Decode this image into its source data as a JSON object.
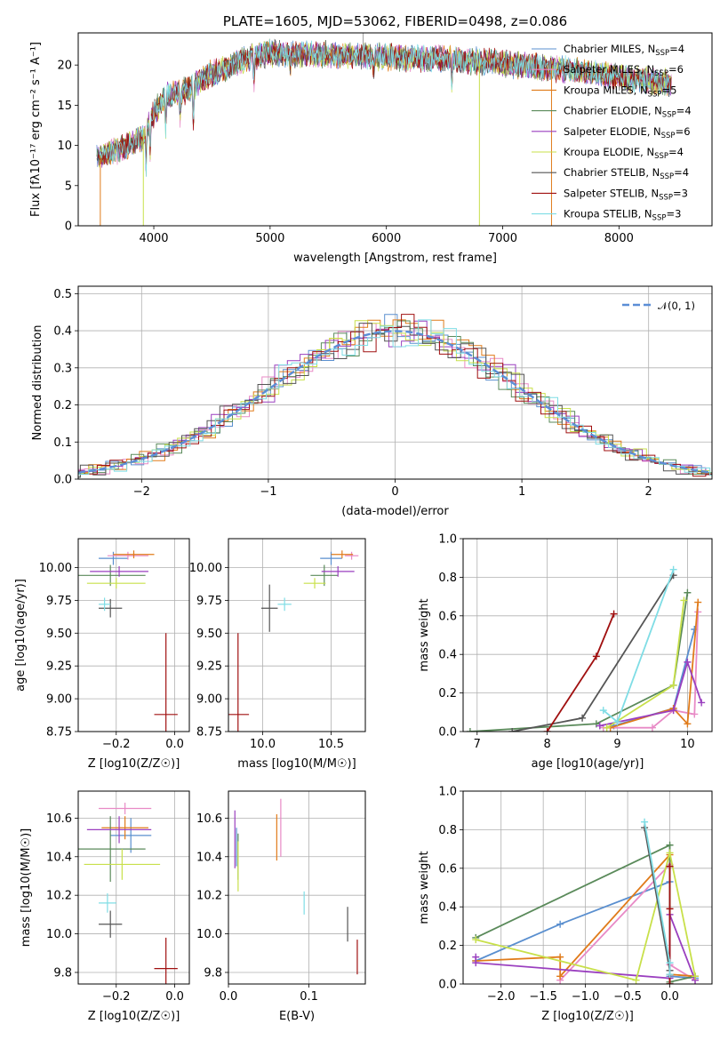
{
  "colors": {
    "chabrier_miles": "#5a8fcf",
    "salpeter_miles": "#e88ac6",
    "kroupa_miles": "#e07b1a",
    "chabrier_elodie": "#5a8a5a",
    "salpeter_elodie": "#9a3fbf",
    "kroupa_elodie": "#c8e04a",
    "chabrier_stelib": "#555555",
    "salpeter_stelib": "#a01010",
    "kroupa_stelib": "#7fdde5"
  },
  "chart_data": [
    {
      "id": "spectrum",
      "type": "line",
      "title": "PLATE=1605, MJD=53062, FIBERID=0498, z=0.086",
      "xlabel": "wavelength [Angstrom, rest frame]",
      "ylabel": "Flux [fλ10⁻¹⁷ erg cm⁻² s⁻¹ A⁻¹]",
      "xlim": [
        3350,
        8800
      ],
      "ylim": [
        0,
        24
      ],
      "xticks": [
        "4000",
        "5000",
        "6000",
        "7000",
        "8000"
      ],
      "yticks": [
        "0",
        "5",
        "10",
        "15",
        "20"
      ],
      "grid": false,
      "legend_position": "top-right",
      "continuum": [
        [
          3500,
          8.5
        ],
        [
          3700,
          9.5
        ],
        [
          3900,
          11
        ],
        [
          4000,
          14
        ],
        [
          4100,
          16
        ],
        [
          4300,
          17
        ],
        [
          4500,
          19
        ],
        [
          4800,
          20.8
        ],
        [
          5000,
          21.5
        ],
        [
          5500,
          21.3
        ],
        [
          6000,
          21
        ],
        [
          6500,
          20.8
        ],
        [
          7000,
          20.2
        ],
        [
          7500,
          19.5
        ],
        [
          8000,
          18.5
        ],
        [
          8500,
          17.6
        ]
      ],
      "series": [
        {
          "name": "Chabrier MILES, N_SSP=4",
          "color_key": "chabrier_miles"
        },
        {
          "name": "Salpeter MILES, N_SSP=6",
          "color_key": "salpeter_miles"
        },
        {
          "name": "Kroupa MILES, N_SSP=5",
          "color_key": "kroupa_miles"
        },
        {
          "name": "Chabrier ELODIE, N_SSP=4",
          "color_key": "chabrier_elodie"
        },
        {
          "name": "Salpeter ELODIE, N_SSP=6",
          "color_key": "salpeter_elodie"
        },
        {
          "name": "Kroupa ELODIE, N_SSP=4",
          "color_key": "kroupa_elodie"
        },
        {
          "name": "Chabrier STELIB, N_SSP=4",
          "color_key": "chabrier_stelib"
        },
        {
          "name": "Salpeter STELIB, N_SSP=3",
          "color_key": "salpeter_stelib"
        },
        {
          "name": "Kroupa STELIB, N_SSP=3",
          "color_key": "kroupa_stelib"
        }
      ],
      "legend_labels": [
        {
          "base": "Chabrier MILES, N",
          "sub": "SSP",
          "tail": "=4"
        },
        {
          "base": "Salpeter MILES, N",
          "sub": "SSP",
          "tail": "=6"
        },
        {
          "base": "Kroupa MILES, N",
          "sub": "SSP",
          "tail": "=5"
        },
        {
          "base": "Chabrier ELODIE, N",
          "sub": "SSP",
          "tail": "=4"
        },
        {
          "base": "Salpeter ELODIE, N",
          "sub": "SSP",
          "tail": "=6"
        },
        {
          "base": "Kroupa ELODIE, N",
          "sub": "SSP",
          "tail": "=4"
        },
        {
          "base": "Chabrier STELIB, N",
          "sub": "SSP",
          "tail": "=4"
        },
        {
          "base": "Salpeter STELIB, N",
          "sub": "SSP",
          "tail": "=3"
        },
        {
          "base": "Kroupa STELIB, N",
          "sub": "SSP",
          "tail": "=3"
        }
      ]
    },
    {
      "id": "residuals",
      "type": "line",
      "xlabel": "(data-model)/error",
      "ylabel": "Normed distribution",
      "xlim": [
        -2.5,
        2.5
      ],
      "ylim": [
        0,
        0.52
      ],
      "xticks": [
        "−2",
        "−1",
        "0",
        "1",
        "2"
      ],
      "yticks": [
        "0.0",
        "0.1",
        "0.2",
        "0.3",
        "0.4",
        "0.5"
      ],
      "grid": true,
      "legend_position": "top-right",
      "gaussian_label": "𝒩(0, 1)",
      "bin_width": 0.1
    },
    {
      "id": "age_vs_Z",
      "type": "scatter",
      "xlabel": "Z [log10(Z/Z☉)]",
      "ylabel": "age  [log10(age/yr)]",
      "xlim": [
        -0.33,
        0.05
      ],
      "ylim": [
        8.75,
        10.22
      ],
      "xticks": [
        "−0.2",
        "0.0"
      ],
      "yticks": [
        "8.75",
        "9.00",
        "9.25",
        "9.50",
        "9.75",
        "10.00"
      ],
      "grid": true,
      "points": [
        {
          "color_key": "chabrier_miles",
          "x": -0.21,
          "y": 10.07,
          "xerr": 0.05,
          "yerr": 0.05
        },
        {
          "color_key": "salpeter_miles",
          "x": -0.16,
          "y": 10.09,
          "xerr": 0.07,
          "yerr": 0.03
        },
        {
          "color_key": "kroupa_miles",
          "x": -0.14,
          "y": 10.1,
          "xerr": 0.07,
          "yerr": 0.03
        },
        {
          "color_key": "chabrier_elodie",
          "x": -0.22,
          "y": 9.94,
          "xerr": 0.12,
          "yerr": 0.08
        },
        {
          "color_key": "salpeter_elodie",
          "x": -0.19,
          "y": 9.97,
          "xerr": 0.1,
          "yerr": 0.04
        },
        {
          "color_key": "kroupa_elodie",
          "x": -0.2,
          "y": 9.88,
          "xerr": 0.1,
          "yerr": 0.04
        },
        {
          "color_key": "chabrier_stelib",
          "x": -0.22,
          "y": 9.69,
          "xerr": 0.04,
          "yerr": 0.07
        },
        {
          "color_key": "salpeter_stelib",
          "x": -0.03,
          "y": 8.88,
          "xerr": 0.04,
          "yerr": 0.62
        },
        {
          "color_key": "kroupa_stelib",
          "x": -0.24,
          "y": 9.72,
          "xerr": 0.02,
          "yerr": 0.05
        }
      ]
    },
    {
      "id": "age_vs_mass",
      "type": "scatter",
      "xlabel": "mass [log10(M/M☉)]",
      "ylabel": "",
      "xlim": [
        9.75,
        10.75
      ],
      "ylim": [
        8.75,
        10.22
      ],
      "xticks": [
        "10.0",
        "10.5"
      ],
      "yticks": [
        "8.75",
        "9.00",
        "9.25",
        "9.50",
        "9.75",
        "10.00"
      ],
      "grid": true,
      "points": [
        {
          "color_key": "chabrier_miles",
          "x": 10.5,
          "y": 10.07,
          "xerr": 0.08,
          "yerr": 0.05
        },
        {
          "color_key": "salpeter_miles",
          "x": 10.65,
          "y": 10.09,
          "xerr": 0.05,
          "yerr": 0.03
        },
        {
          "color_key": "kroupa_miles",
          "x": 10.58,
          "y": 10.1,
          "xerr": 0.08,
          "yerr": 0.03
        },
        {
          "color_key": "chabrier_elodie",
          "x": 10.45,
          "y": 9.94,
          "xerr": 0.1,
          "yerr": 0.08
        },
        {
          "color_key": "salpeter_elodie",
          "x": 10.55,
          "y": 9.97,
          "xerr": 0.12,
          "yerr": 0.04
        },
        {
          "color_key": "kroupa_elodie",
          "x": 10.38,
          "y": 9.88,
          "xerr": 0.08,
          "yerr": 0.04
        },
        {
          "color_key": "chabrier_stelib",
          "x": 10.05,
          "y": 9.69,
          "xerr": 0.06,
          "yerr": 0.18
        },
        {
          "color_key": "salpeter_stelib",
          "x": 9.82,
          "y": 8.88,
          "xerr": 0.08,
          "yerr": 0.62
        },
        {
          "color_key": "kroupa_stelib",
          "x": 10.16,
          "y": 9.72,
          "xerr": 0.05,
          "yerr": 0.05
        }
      ]
    },
    {
      "id": "weight_vs_age",
      "type": "line",
      "xlabel": "age  [log10(age/yr)]",
      "ylabel": "mass weight",
      "xlim": [
        6.8,
        10.35
      ],
      "ylim": [
        0,
        1.0
      ],
      "xticks": [
        "7",
        "8",
        "9",
        "10"
      ],
      "yticks": [
        "0.0",
        "0.2",
        "0.4",
        "0.6",
        "0.8",
        "1.0"
      ],
      "grid": true,
      "series": [
        {
          "color_key": "chabrier_miles",
          "points": [
            [
              8.95,
              0.03
            ],
            [
              9.8,
              0.12
            ],
            [
              10.1,
              0.53
            ]
          ]
        },
        {
          "color_key": "salpeter_miles",
          "points": [
            [
              8.8,
              0.02
            ],
            [
              9.5,
              0.02
            ],
            [
              9.8,
              0.11
            ],
            [
              10.1,
              0.09
            ],
            [
              10.15,
              0.62
            ]
          ]
        },
        {
          "color_key": "kroupa_miles",
          "points": [
            [
              8.9,
              0.02
            ],
            [
              9.8,
              0.12
            ],
            [
              10.0,
              0.04
            ],
            [
              10.15,
              0.67
            ]
          ]
        },
        {
          "color_key": "chabrier_elodie",
          "points": [
            [
              6.9,
              0.0
            ],
            [
              8.7,
              0.04
            ],
            [
              9.8,
              0.24
            ],
            [
              10.0,
              0.72
            ]
          ]
        },
        {
          "color_key": "salpeter_elodie",
          "points": [
            [
              8.75,
              0.03
            ],
            [
              9.8,
              0.11
            ],
            [
              10.0,
              0.36
            ],
            [
              10.2,
              0.15
            ]
          ]
        },
        {
          "color_key": "kroupa_elodie",
          "points": [
            [
              8.85,
              0.02
            ],
            [
              9.8,
              0.24
            ],
            [
              9.95,
              0.68
            ]
          ]
        },
        {
          "color_key": "chabrier_stelib",
          "points": [
            [
              7.5,
              0.0
            ],
            [
              8.5,
              0.07
            ],
            [
              9.8,
              0.81
            ]
          ]
        },
        {
          "color_key": "salpeter_stelib",
          "points": [
            [
              8.0,
              0.0
            ],
            [
              8.7,
              0.39
            ],
            [
              8.95,
              0.61
            ]
          ]
        },
        {
          "color_key": "kroupa_stelib",
          "points": [
            [
              8.8,
              0.11
            ],
            [
              9.0,
              0.05
            ],
            [
              9.8,
              0.84
            ]
          ]
        }
      ]
    },
    {
      "id": "mass_vs_Z",
      "type": "scatter",
      "xlabel": "Z [log10(Z/Z☉)]",
      "ylabel": "mass [log10(M/M☉)]",
      "xlim": [
        -0.33,
        0.05
      ],
      "ylim": [
        9.74,
        10.74
      ],
      "xticks": [
        "−0.2",
        "0.0"
      ],
      "yticks": [
        "9.8",
        "10.0",
        "10.2",
        "10.4",
        "10.6"
      ],
      "grid": true,
      "points": [
        {
          "color_key": "chabrier_miles",
          "x": -0.15,
          "y": 10.51,
          "xerr": 0.07,
          "yerr": 0.09
        },
        {
          "color_key": "salpeter_miles",
          "x": -0.17,
          "y": 10.65,
          "xerr": 0.09,
          "yerr": 0.03
        },
        {
          "color_key": "kroupa_miles",
          "x": -0.17,
          "y": 10.55,
          "xerr": 0.08,
          "yerr": 0.06
        },
        {
          "color_key": "chabrier_elodie",
          "x": -0.22,
          "y": 10.44,
          "xerr": 0.12,
          "yerr": 0.17
        },
        {
          "color_key": "salpeter_elodie",
          "x": -0.19,
          "y": 10.54,
          "xerr": 0.11,
          "yerr": 0.07
        },
        {
          "color_key": "kroupa_elodie",
          "x": -0.18,
          "y": 10.36,
          "xerr": 0.13,
          "yerr": 0.08
        },
        {
          "color_key": "chabrier_stelib",
          "x": -0.22,
          "y": 10.05,
          "xerr": 0.04,
          "yerr": 0.07
        },
        {
          "color_key": "salpeter_stelib",
          "x": -0.03,
          "y": 9.82,
          "xerr": 0.04,
          "yerr": 0.16
        },
        {
          "color_key": "kroupa_stelib",
          "x": -0.23,
          "y": 10.16,
          "xerr": 0.03,
          "yerr": 0.05
        }
      ]
    },
    {
      "id": "mass_vs_ebv",
      "type": "scatter",
      "xlabel": "E(B-V)",
      "ylabel": "",
      "xlim": [
        0.0,
        0.17
      ],
      "ylim": [
        9.74,
        10.74
      ],
      "xticks": [
        "0.0",
        "0.1"
      ],
      "yticks": [
        "9.8",
        "10.0",
        "10.2",
        "10.4",
        "10.6"
      ],
      "grid": true,
      "points": [
        {
          "color_key": "chabrier_miles",
          "x": 0.01,
          "y": 10.45,
          "xerr": 0.0,
          "yerr": 0.1
        },
        {
          "color_key": "salpeter_miles",
          "x": 0.065,
          "y": 10.55,
          "xerr": 0.0,
          "yerr": 0.15
        },
        {
          "color_key": "kroupa_miles",
          "x": 0.06,
          "y": 10.5,
          "xerr": 0.0,
          "yerr": 0.12
        },
        {
          "color_key": "chabrier_elodie",
          "x": 0.012,
          "y": 10.4,
          "xerr": 0.0,
          "yerr": 0.12
        },
        {
          "color_key": "salpeter_elodie",
          "x": 0.008,
          "y": 10.49,
          "xerr": 0.0,
          "yerr": 0.15
        },
        {
          "color_key": "kroupa_elodie",
          "x": 0.012,
          "y": 10.35,
          "xerr": 0.0,
          "yerr": 0.13
        },
        {
          "color_key": "chabrier_stelib",
          "x": 0.148,
          "y": 10.05,
          "xerr": 0.0,
          "yerr": 0.09
        },
        {
          "color_key": "salpeter_stelib",
          "x": 0.16,
          "y": 9.88,
          "xerr": 0.0,
          "yerr": 0.09
        },
        {
          "color_key": "kroupa_stelib",
          "x": 0.094,
          "y": 10.16,
          "xerr": 0.0,
          "yerr": 0.06
        }
      ]
    },
    {
      "id": "weight_vs_Z",
      "type": "line",
      "xlabel": "Z [log10(Z/Z☉)]",
      "ylabel": "mass weight",
      "xlim": [
        -2.45,
        0.5
      ],
      "ylim": [
        0,
        1.0
      ],
      "xticks": [
        "−2.0",
        "−1.5",
        "−1.0",
        "−0.5",
        "0.0"
      ],
      "yticks": [
        "0.0",
        "0.2",
        "0.4",
        "0.6",
        "0.8",
        "1.0"
      ],
      "grid": true,
      "series": [
        {
          "color_key": "chabrier_miles",
          "points": [
            [
              -2.3,
              0.12
            ],
            [
              -1.3,
              0.31
            ],
            [
              0.0,
              0.53
            ],
            [
              0.0,
              0.04
            ],
            [
              0.3,
              0.03
            ]
          ]
        },
        {
          "color_key": "salpeter_miles",
          "points": [
            [
              -1.3,
              0.02
            ],
            [
              0.0,
              0.62
            ],
            [
              0.0,
              0.1
            ],
            [
              0.3,
              0.02
            ]
          ]
        },
        {
          "color_key": "kroupa_miles",
          "points": [
            [
              -2.3,
              0.12
            ],
            [
              -1.3,
              0.14
            ],
            [
              -1.3,
              0.04
            ],
            [
              0.0,
              0.67
            ],
            [
              0.0,
              0.05
            ],
            [
              0.3,
              0.04
            ]
          ]
        },
        {
          "color_key": "chabrier_elodie",
          "points": [
            [
              -2.3,
              0.24
            ],
            [
              0.0,
              0.72
            ],
            [
              0.0,
              0.01
            ],
            [
              0.3,
              0.04
            ]
          ]
        },
        {
          "color_key": "salpeter_elodie",
          "points": [
            [
              -2.3,
              0.14
            ],
            [
              -2.3,
              0.11
            ],
            [
              0.0,
              0.03
            ],
            [
              0.0,
              0.36
            ],
            [
              0.3,
              0.02
            ]
          ]
        },
        {
          "color_key": "kroupa_elodie",
          "points": [
            [
              -2.3,
              0.23
            ],
            [
              -0.4,
              0.02
            ],
            [
              0.0,
              0.68
            ],
            [
              0.3,
              0.04
            ]
          ]
        },
        {
          "color_key": "chabrier_stelib",
          "points": [
            [
              -0.3,
              0.81
            ],
            [
              0.0,
              0.07
            ],
            [
              0.0,
              0.0
            ]
          ]
        },
        {
          "color_key": "salpeter_stelib",
          "points": [
            [
              0.0,
              0.61
            ],
            [
              0.0,
              0.39
            ],
            [
              0.0,
              0.0
            ]
          ]
        },
        {
          "color_key": "kroupa_stelib",
          "points": [
            [
              -0.3,
              0.84
            ],
            [
              0.0,
              0.11
            ],
            [
              0.0,
              0.05
            ]
          ]
        }
      ]
    }
  ]
}
